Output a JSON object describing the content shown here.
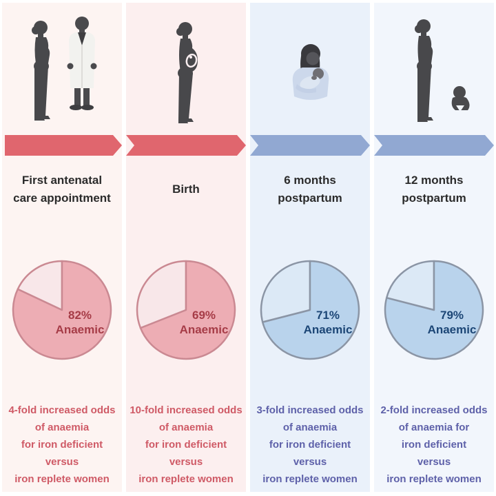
{
  "columns": [
    {
      "key": "first-antenatal",
      "theme": "pink",
      "bg": "#fdf4f2",
      "title_lines": [
        "First antenatal",
        "care appointment"
      ],
      "pie_label": [
        "82%",
        "Anaemic"
      ],
      "odds_lines": [
        "4-fold increased odds",
        "of anaemia",
        "for iron deficient",
        "versus",
        "iron replete women"
      ],
      "illustration": "woman-with-doctor"
    },
    {
      "key": "birth",
      "theme": "pink",
      "bg": "#fcefef",
      "title_lines": [
        "Birth"
      ],
      "pie_label": [
        "69%",
        "Anaemic"
      ],
      "odds_lines": [
        "10-fold increased odds",
        "of anaemia",
        "for iron deficient",
        "versus",
        "iron replete women"
      ],
      "illustration": "pregnant-woman"
    },
    {
      "key": "6-months-postpartum",
      "theme": "blue",
      "bg": "#eaf1fa",
      "title_lines": [
        "6 months",
        "postpartum"
      ],
      "pie_label": [
        "71%",
        "Anaemic"
      ],
      "odds_lines": [
        "3-fold increased odds",
        "of anaemia",
        "for iron deficient",
        "versus",
        "iron replete women"
      ],
      "illustration": "mother-nursing-baby"
    },
    {
      "key": "12-months-postpartum",
      "theme": "blue",
      "bg": "#f2f6fc",
      "title_lines": [
        "12 months",
        "postpartum"
      ],
      "pie_label": [
        "79%",
        "Anaemic"
      ],
      "odds_lines": [
        "2-fold increased odds",
        "of anaemia for",
        "iron deficient",
        "versus",
        "iron replete women"
      ],
      "illustration": "woman-with-baby"
    }
  ],
  "theme_colors": {
    "pink": {
      "arrow": "#e0666e",
      "pie_main": "#edadb4",
      "pie_light": "#f8e7e9",
      "pie_stroke": "#ca8992",
      "pie_text": "#a63c47",
      "odds_text": "#cf5a66"
    },
    "blue": {
      "arrow": "#91a8d2",
      "pie_main": "#b9d3ec",
      "pie_light": "#dce9f6",
      "pie_stroke": "#8b95a5",
      "pie_text": "#1c4676",
      "odds_text": "#5e61a9"
    }
  },
  "chart_data": [
    {
      "type": "pie",
      "title": "First antenatal care appointment",
      "labels": [
        "Anaemic",
        "Other"
      ],
      "values": [
        82,
        18
      ],
      "unit": "%",
      "annotation": "82% Anaemic",
      "start_angle_deg": -90,
      "direction": "clockwise",
      "label_position": "inside-right",
      "legend": "none"
    },
    {
      "type": "pie",
      "title": "Birth",
      "labels": [
        "Anaemic",
        "Other"
      ],
      "values": [
        69,
        31
      ],
      "unit": "%",
      "annotation": "69% Anaemic",
      "start_angle_deg": -90,
      "direction": "clockwise",
      "label_position": "inside-right",
      "legend": "none"
    },
    {
      "type": "pie",
      "title": "6 months postpartum",
      "labels": [
        "Anaemic",
        "Other"
      ],
      "values": [
        71,
        29
      ],
      "unit": "%",
      "annotation": "71% Anaemic",
      "start_angle_deg": -90,
      "direction": "clockwise",
      "label_position": "inside-right",
      "legend": "none"
    },
    {
      "type": "pie",
      "title": "12 months postpartum",
      "labels": [
        "Anaemic",
        "Other"
      ],
      "values": [
        79,
        21
      ],
      "unit": "%",
      "annotation": "79% Anaemic",
      "start_angle_deg": -90,
      "direction": "clockwise",
      "label_position": "inside-right",
      "legend": "none"
    }
  ]
}
